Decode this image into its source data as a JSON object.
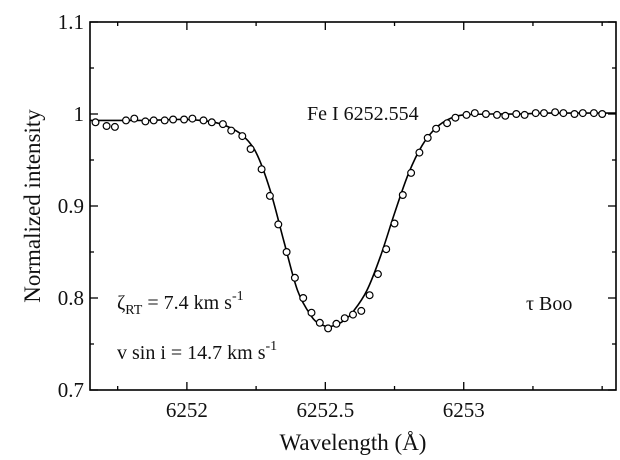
{
  "chart_data": {
    "type": "scatter",
    "xlabel": "Wavelength (Å)",
    "ylabel": "Normalized intensity",
    "xlim": [
      6251.65,
      6253.55
    ],
    "ylim": [
      0.7,
      1.1
    ],
    "x_ticks": [
      6252,
      6252.5,
      6253
    ],
    "x_tick_labels": [
      "6252",
      "6252.5",
      "6253"
    ],
    "y_ticks": [
      0.7,
      0.8,
      0.9,
      1.0,
      1.1
    ],
    "y_tick_labels": [
      "0.7",
      "0.8",
      "0.9",
      "1",
      "1.1"
    ],
    "grid": false,
    "annotations": {
      "line_id": "Fe I 6252.554",
      "zeta_symbol": "ζ",
      "zeta_subscript": "RT",
      "zeta_value": " = 7.4 km s",
      "zeta_exp": "-1",
      "vsini_value": "v sin i = 14.7 km s",
      "vsini_exp": "-1",
      "star": "τ Boo"
    },
    "series": [
      {
        "kind": "observed",
        "marker": "open-circle",
        "x": [
          6251.67,
          6251.71,
          6251.74,
          6251.78,
          6251.81,
          6251.85,
          6251.88,
          6251.92,
          6251.95,
          6251.99,
          6252.02,
          6252.06,
          6252.09,
          6252.13,
          6252.16,
          6252.2,
          6252.23,
          6252.27,
          6252.3,
          6252.33,
          6252.36,
          6252.39,
          6252.42,
          6252.45,
          6252.48,
          6252.51,
          6252.54,
          6252.57,
          6252.6,
          6252.63,
          6252.66,
          6252.69,
          6252.72,
          6252.75,
          6252.78,
          6252.81,
          6252.84,
          6252.87,
          6252.9,
          6252.94,
          6252.97,
          6253.01,
          6253.04,
          6253.08,
          6253.12,
          6253.15,
          6253.19,
          6253.22,
          6253.26,
          6253.29,
          6253.33,
          6253.36,
          6253.4,
          6253.43,
          6253.47,
          6253.5
        ],
        "y": [
          0.991,
          0.987,
          0.986,
          0.993,
          0.995,
          0.992,
          0.993,
          0.993,
          0.994,
          0.994,
          0.995,
          0.993,
          0.991,
          0.989,
          0.982,
          0.976,
          0.962,
          0.94,
          0.911,
          0.88,
          0.85,
          0.822,
          0.8,
          0.784,
          0.773,
          0.767,
          0.772,
          0.778,
          0.782,
          0.786,
          0.803,
          0.826,
          0.853,
          0.881,
          0.912,
          0.936,
          0.958,
          0.974,
          0.984,
          0.99,
          0.996,
          0.999,
          1.001,
          1.0,
          0.999,
          0.998,
          1.0,
          0.999,
          1.001,
          1.001,
          1.002,
          1.001,
          1.0,
          1.001,
          1.001,
          1.0
        ]
      },
      {
        "kind": "model",
        "marker": "solid-line",
        "x": [
          6251.65,
          6251.75,
          6251.85,
          6251.95,
          6252.0,
          6252.05,
          6252.1,
          6252.15,
          6252.2,
          6252.25,
          6252.3,
          6252.35,
          6252.4,
          6252.45,
          6252.48,
          6252.51,
          6252.54,
          6252.57,
          6252.6,
          6252.65,
          6252.7,
          6252.75,
          6252.8,
          6252.85,
          6252.9,
          6252.95,
          6253.0,
          6253.1,
          6253.2,
          6253.3,
          6253.4,
          6253.55
        ],
        "y": [
          0.993,
          0.993,
          0.993,
          0.994,
          0.994,
          0.993,
          0.991,
          0.986,
          0.977,
          0.958,
          0.918,
          0.862,
          0.808,
          0.78,
          0.772,
          0.769,
          0.771,
          0.776,
          0.785,
          0.808,
          0.846,
          0.892,
          0.935,
          0.966,
          0.985,
          0.995,
          0.999,
          1.0,
          1.0,
          1.001,
          1.001,
          1.001
        ]
      }
    ]
  }
}
